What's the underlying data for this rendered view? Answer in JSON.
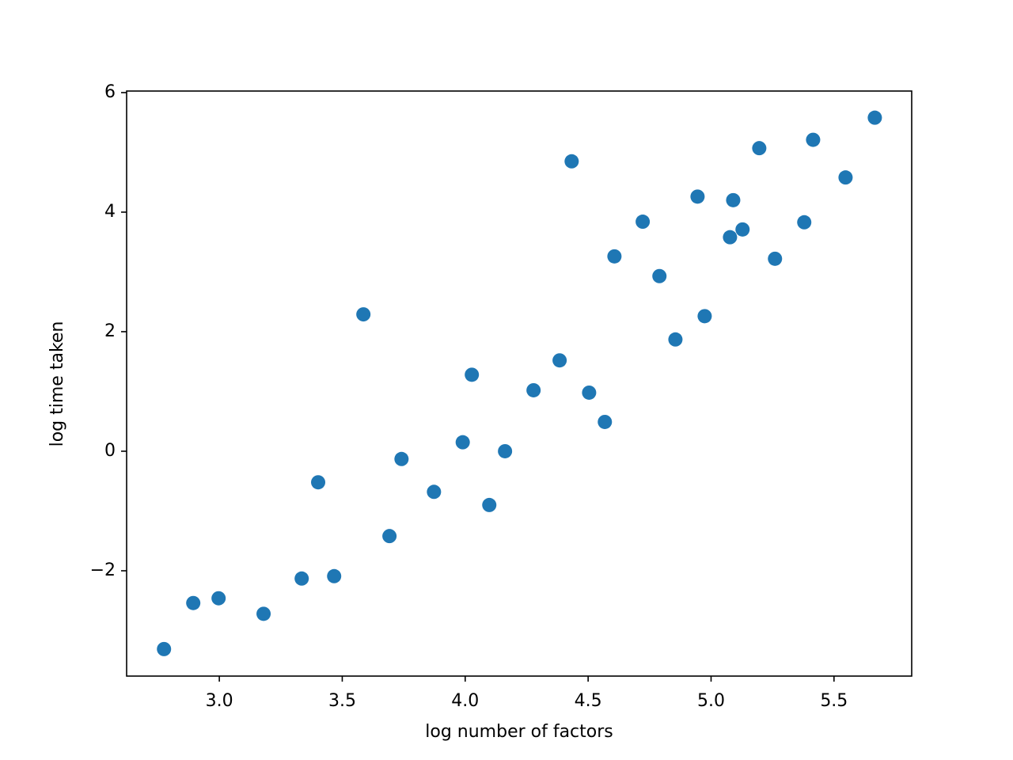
{
  "chart_data": {
    "type": "scatter",
    "xlabel": "log number of factors",
    "ylabel": "log time taken",
    "color": "#1f77b4",
    "x": [
      2.775,
      2.894,
      2.997,
      3.18,
      3.335,
      3.402,
      3.467,
      3.586,
      3.692,
      3.741,
      3.873,
      3.99,
      4.027,
      4.098,
      4.162,
      4.278,
      4.384,
      4.433,
      4.504,
      4.568,
      4.607,
      4.722,
      4.79,
      4.855,
      4.945,
      4.974,
      5.077,
      5.09,
      5.128,
      5.196,
      5.26,
      5.379,
      5.415,
      5.547,
      5.666
    ],
    "values": [
      -3.31,
      -2.54,
      -2.46,
      -2.72,
      -2.13,
      -0.52,
      -2.09,
      2.29,
      -1.42,
      -0.13,
      -0.68,
      0.15,
      1.28,
      -0.9,
      0.0,
      1.02,
      1.52,
      4.85,
      0.98,
      0.49,
      3.26,
      3.84,
      2.93,
      1.87,
      4.26,
      2.26,
      3.58,
      4.2,
      3.71,
      5.07,
      3.22,
      3.83,
      5.21,
      4.58,
      5.58
    ],
    "xlim": [
      2.623,
      5.816
    ],
    "ylim": [
      -3.762,
      6.026
    ],
    "xticks": [
      {
        "value": 3,
        "label": "3.0"
      },
      {
        "value": 3.5,
        "label": "3.5"
      },
      {
        "value": 4,
        "label": "4.0"
      },
      {
        "value": 4.5,
        "label": "4.5"
      },
      {
        "value": 5,
        "label": "5.0"
      },
      {
        "value": 5.5,
        "label": "5.5"
      }
    ],
    "yticks": [
      {
        "value": -2,
        "label": "−2"
      },
      0,
      2,
      4,
      6
    ]
  }
}
